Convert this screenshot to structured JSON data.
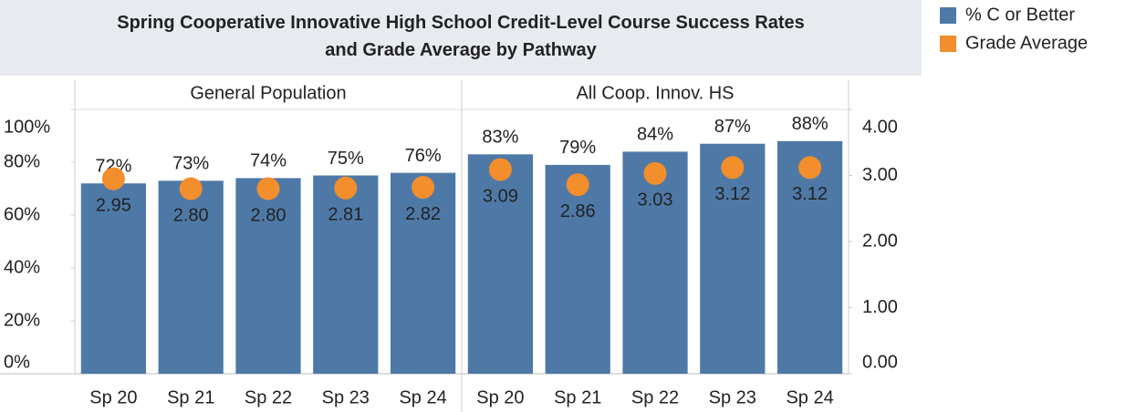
{
  "chart_data": {
    "type": "bar",
    "title": "Spring Cooperative Innovative High School Credit-Level Course Success Rates and Grade Average by Pathway",
    "panels": [
      "General Population",
      "All Coop. Innov. HS"
    ],
    "categories": [
      "Sp 20",
      "Sp 21",
      "Sp 22",
      "Sp 23",
      "Sp 24",
      "Sp 20",
      "Sp 21",
      "Sp 22",
      "Sp 23",
      "Sp 24"
    ],
    "series": [
      {
        "name": "% C or Better",
        "color": "#4e79a7",
        "type": "bar",
        "values": [
          72,
          73,
          74,
          75,
          76,
          83,
          79,
          84,
          87,
          88
        ],
        "value_labels": [
          "72%",
          "73%",
          "74%",
          "75%",
          "76%",
          "83%",
          "79%",
          "84%",
          "87%",
          "88%"
        ]
      },
      {
        "name": "Grade Average",
        "color": "#f28e2b",
        "type": "scatter",
        "axis": "y2",
        "values": [
          2.95,
          2.8,
          2.8,
          2.81,
          2.82,
          3.09,
          2.86,
          3.03,
          3.12,
          3.12
        ],
        "value_labels": [
          "2.95",
          "2.80",
          "2.80",
          "2.81",
          "2.82",
          "3.09",
          "2.86",
          "3.03",
          "3.12",
          "3.12"
        ]
      }
    ],
    "ylim": [
      0,
      100
    ],
    "yticks": [
      {
        "value": 0,
        "label": "0%"
      },
      {
        "value": 20,
        "label": "20%"
      },
      {
        "value": 40,
        "label": "40%"
      },
      {
        "value": 60,
        "label": "60%"
      },
      {
        "value": 80,
        "label": "80%"
      },
      {
        "value": 100,
        "label": "100%"
      }
    ],
    "y2lim": [
      0,
      4
    ],
    "y2ticks": [
      {
        "value": 0,
        "label": "0.00"
      },
      {
        "value": 1,
        "label": "1.00"
      },
      {
        "value": 2,
        "label": "2.00"
      },
      {
        "value": 3,
        "label": "3.00"
      },
      {
        "value": 4,
        "label": "4.00"
      }
    ]
  }
}
